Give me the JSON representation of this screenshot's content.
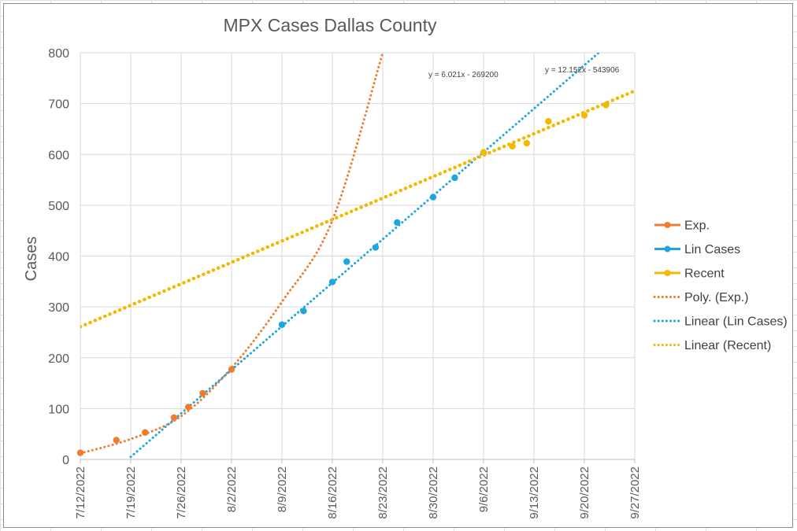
{
  "chart_data": {
    "type": "scatter",
    "title": "MPX Cases Dallas County",
    "xlabel": "",
    "ylabel": "Cases",
    "ylim": [
      0,
      800
    ],
    "yticks": [
      0,
      100,
      200,
      300,
      400,
      500,
      600,
      700,
      800
    ],
    "xlim": [
      "2022-07-12",
      "2022-09-27"
    ],
    "xticks": [
      "2022-07-12",
      "2022-07-19",
      "2022-07-26",
      "2022-08-02",
      "2022-08-09",
      "2022-08-16",
      "2022-08-23",
      "2022-08-30",
      "2022-09-06",
      "2022-09-13",
      "2022-09-20",
      "2022-09-27"
    ],
    "xtick_labels": [
      "7/12/2022",
      "7/19/2022",
      "7/26/2022",
      "8/2/2022",
      "8/9/2022",
      "8/16/2022",
      "8/23/2022",
      "8/30/2022",
      "9/6/2022",
      "9/13/2022",
      "9/20/2022",
      "9/27/2022"
    ],
    "grid": true,
    "legend_position": "right",
    "series": [
      {
        "name": "Exp.",
        "color": "#ED7D31",
        "x": [
          "2022-07-12",
          "2022-07-17",
          "2022-07-21",
          "2022-07-25",
          "2022-07-27",
          "2022-07-29",
          "2022-08-02"
        ],
        "y": [
          13,
          38,
          53,
          82,
          103,
          130,
          177
        ]
      },
      {
        "name": "Lin Cases",
        "color": "#1EA7DE",
        "x": [
          "2022-08-09",
          "2022-08-12",
          "2022-08-16",
          "2022-08-18",
          "2022-08-22",
          "2022-08-25",
          "2022-08-30",
          "2022-09-02"
        ],
        "y": [
          265,
          292,
          349,
          389,
          417,
          466,
          516,
          554
        ]
      },
      {
        "name": "Recent",
        "color": "#F5B800",
        "x": [
          "2022-09-06",
          "2022-09-10",
          "2022-09-12",
          "2022-09-15",
          "2022-09-20",
          "2022-09-23"
        ],
        "y": [
          604,
          616,
          622,
          665,
          677,
          697
        ]
      },
      {
        "name": "Poly. (Exp.)",
        "type": "trendline",
        "color": "#ED7D31",
        "x": [
          "2022-07-12",
          "2022-07-19",
          "2022-07-26",
          "2022-08-02",
          "2022-08-09",
          "2022-08-16",
          "2022-08-23"
        ],
        "y": [
          12,
          40,
          85,
          180,
          310,
          470,
          800
        ]
      },
      {
        "name": "Linear (Lin Cases)",
        "type": "trendline",
        "color": "#1EA7DE",
        "equation": "y = 12.152x - 543906",
        "x": [
          "2022-07-19",
          "2022-09-22"
        ],
        "y": [
          5,
          800
        ]
      },
      {
        "name": "Linear (Recent)",
        "type": "trendline",
        "color": "#F5B800",
        "equation": "y = 6.021x - 269200",
        "x": [
          "2022-07-12",
          "2022-09-27"
        ],
        "y": [
          261,
          725
        ]
      }
    ]
  }
}
